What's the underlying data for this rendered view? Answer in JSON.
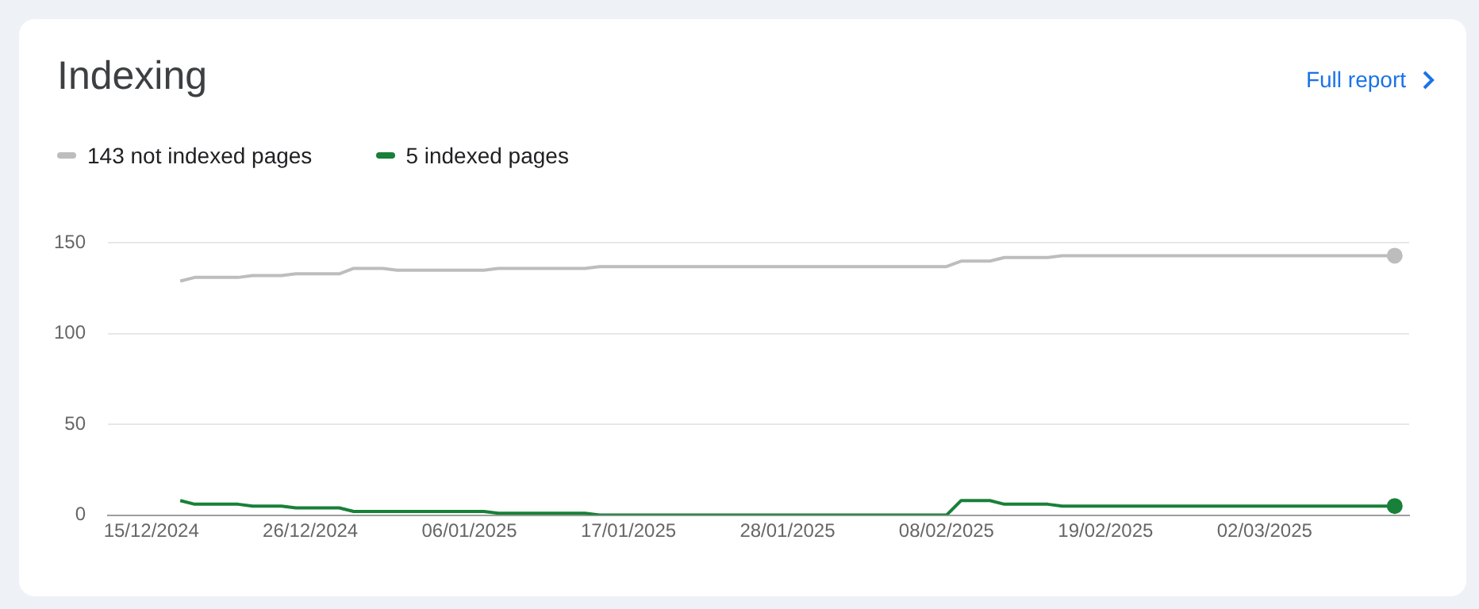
{
  "chart_data": {
    "type": "line",
    "title": "Indexing",
    "annotations": [
      "Full report"
    ],
    "x": [
      "2024-12-17",
      "2024-12-18",
      "2024-12-21",
      "2024-12-22",
      "2024-12-24",
      "2024-12-25",
      "2024-12-28",
      "2024-12-29",
      "2024-12-31",
      "2025-01-01",
      "2025-01-07",
      "2025-01-08",
      "2025-01-14",
      "2025-01-15",
      "2025-02-08",
      "2025-02-09",
      "2025-02-11",
      "2025-02-12",
      "2025-02-15",
      "2025-02-16",
      "2025-03-11"
    ],
    "series": [
      {
        "name": "143 not indexed pages",
        "color": "#bdbdbd",
        "values": [
          129,
          131,
          131,
          132,
          132,
          133,
          133,
          136,
          136,
          135,
          135,
          136,
          136,
          137,
          137,
          140,
          140,
          142,
          142,
          143,
          143
        ]
      },
      {
        "name": "5 indexed pages",
        "color": "#188038",
        "values": [
          8,
          6,
          6,
          5,
          5,
          4,
          4,
          2,
          2,
          2,
          2,
          1,
          1,
          0,
          0,
          8,
          8,
          6,
          6,
          5,
          5
        ]
      }
    ],
    "xlim": [
      "2024-12-12",
      "2025-03-12"
    ],
    "xticks": [
      {
        "value": "2024-12-15",
        "label": "15/12/2024"
      },
      {
        "value": "2024-12-26",
        "label": "26/12/2024"
      },
      {
        "value": "2025-01-06",
        "label": "06/01/2025"
      },
      {
        "value": "2025-01-17",
        "label": "17/01/2025"
      },
      {
        "value": "2025-01-28",
        "label": "28/01/2025"
      },
      {
        "value": "2025-02-08",
        "label": "08/02/2025"
      },
      {
        "value": "2025-02-19",
        "label": "19/02/2025"
      },
      {
        "value": "2025-03-02",
        "label": "02/03/2025"
      }
    ],
    "ylim": [
      0,
      150
    ],
    "yticks": [
      0,
      50,
      100,
      150
    ],
    "grid": "y",
    "legend": "top left",
    "marker": "none",
    "line_style": "solid"
  }
}
